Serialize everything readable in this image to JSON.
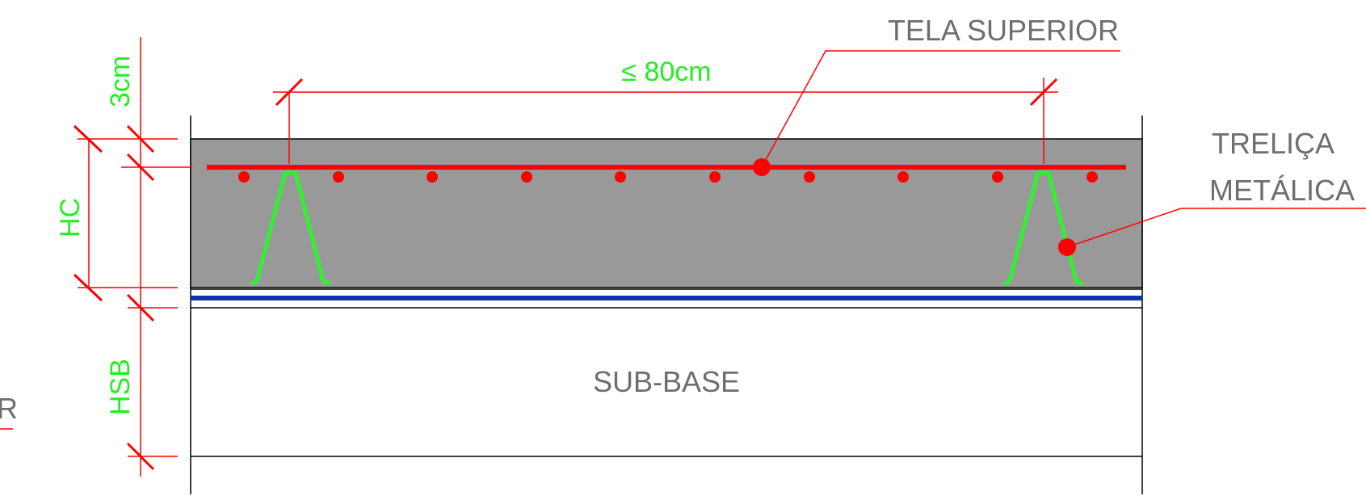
{
  "labels": {
    "tela_superior": "TELA SUPERIOR",
    "trelica_line1": "TRELIÇA",
    "trelica_line2": "METÁLICA",
    "sub_base": "SUB-BASE",
    "spacing": "≤ 80cm",
    "cover": "3cm",
    "hc": "HC",
    "hsb": "HSB",
    "cut_edge_fragment": "R"
  },
  "colors": {
    "concrete": "#999999",
    "rebar": "#ff0000",
    "truss": "#33ee33",
    "membrane": "#1033aa",
    "dimension_text": "#22ee22",
    "label_text": "#6e6e6e",
    "outline": "#000000"
  }
}
